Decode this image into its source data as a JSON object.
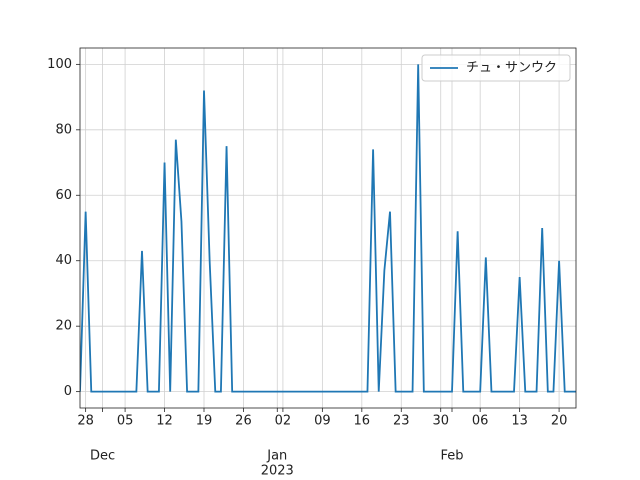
{
  "chart_data": {
    "type": "line",
    "x": [
      "2022-11-27",
      "2022-11-28",
      "2022-11-29",
      "2022-11-30",
      "2022-12-01",
      "2022-12-02",
      "2022-12-03",
      "2022-12-04",
      "2022-12-05",
      "2022-12-06",
      "2022-12-07",
      "2022-12-08",
      "2022-12-09",
      "2022-12-10",
      "2022-12-11",
      "2022-12-12",
      "2022-12-13",
      "2022-12-14",
      "2022-12-15",
      "2022-12-16",
      "2022-12-17",
      "2022-12-18",
      "2022-12-19",
      "2022-12-20",
      "2022-12-21",
      "2022-12-22",
      "2022-12-23",
      "2022-12-24",
      "2022-12-25",
      "2022-12-26",
      "2022-12-27",
      "2022-12-28",
      "2022-12-29",
      "2022-12-30",
      "2022-12-31",
      "2023-01-01",
      "2023-01-02",
      "2023-01-03",
      "2023-01-04",
      "2023-01-05",
      "2023-01-06",
      "2023-01-07",
      "2023-01-08",
      "2023-01-09",
      "2023-01-10",
      "2023-01-11",
      "2023-01-12",
      "2023-01-13",
      "2023-01-14",
      "2023-01-15",
      "2023-01-16",
      "2023-01-17",
      "2023-01-18",
      "2023-01-19",
      "2023-01-20",
      "2023-01-21",
      "2023-01-22",
      "2023-01-23",
      "2023-01-24",
      "2023-01-25",
      "2023-01-26",
      "2023-01-27",
      "2023-01-28",
      "2023-01-29",
      "2023-01-30",
      "2023-01-31",
      "2023-02-01",
      "2023-02-02",
      "2023-02-03",
      "2023-02-04",
      "2023-02-05",
      "2023-02-06",
      "2023-02-07",
      "2023-02-08",
      "2023-02-09",
      "2023-02-10",
      "2023-02-11",
      "2023-02-12",
      "2023-02-13",
      "2023-02-14",
      "2023-02-15",
      "2023-02-16",
      "2023-02-17",
      "2023-02-18",
      "2023-02-19",
      "2023-02-20",
      "2023-02-21",
      "2023-02-22",
      "2023-02-23"
    ],
    "series": [
      {
        "name": "チュ・サンウク",
        "color": "#1f77b4",
        "values": [
          0,
          55,
          0,
          0,
          0,
          0,
          0,
          0,
          0,
          0,
          0,
          43,
          0,
          0,
          0,
          70,
          0,
          77,
          52,
          0,
          0,
          0,
          92,
          40,
          0,
          0,
          75,
          0,
          0,
          0,
          0,
          0,
          0,
          0,
          0,
          0,
          0,
          0,
          0,
          0,
          0,
          0,
          0,
          0,
          0,
          0,
          0,
          0,
          0,
          0,
          0,
          0,
          74,
          0,
          37,
          55,
          0,
          0,
          0,
          0,
          100,
          0,
          0,
          0,
          0,
          0,
          0,
          49,
          0,
          0,
          0,
          0,
          41,
          0,
          0,
          0,
          0,
          0,
          35,
          0,
          0,
          0,
          50,
          0,
          0,
          40,
          0,
          0,
          0
        ]
      }
    ],
    "xlim": [
      "2022-11-27",
      "2023-02-23"
    ],
    "xticks": [
      {
        "value": "2022-11-28",
        "label": "28"
      },
      {
        "value": "2022-12-05",
        "label": "05"
      },
      {
        "value": "2022-12-12",
        "label": "12"
      },
      {
        "value": "2022-12-19",
        "label": "19"
      },
      {
        "value": "2022-12-26",
        "label": "26"
      },
      {
        "value": "2023-01-02",
        "label": "02"
      },
      {
        "value": "2023-01-09",
        "label": "09"
      },
      {
        "value": "2023-01-16",
        "label": "16"
      },
      {
        "value": "2023-01-23",
        "label": "23"
      },
      {
        "value": "2023-01-30",
        "label": "30"
      },
      {
        "value": "2023-02-06",
        "label": "06"
      },
      {
        "value": "2023-02-13",
        "label": "13"
      },
      {
        "value": "2023-02-20",
        "label": "20"
      }
    ],
    "month_ticks": [
      {
        "value": "2022-12-01",
        "label": "Dec"
      },
      {
        "value": "2023-01-01",
        "label": "Jan"
      },
      {
        "value": "2023-02-01",
        "label": "Feb"
      }
    ],
    "offset_label": "2023",
    "ylim": [
      -5,
      105
    ],
    "yticks": [
      0,
      20,
      40,
      60,
      80,
      100
    ],
    "grid": true,
    "legend": "upper right"
  }
}
